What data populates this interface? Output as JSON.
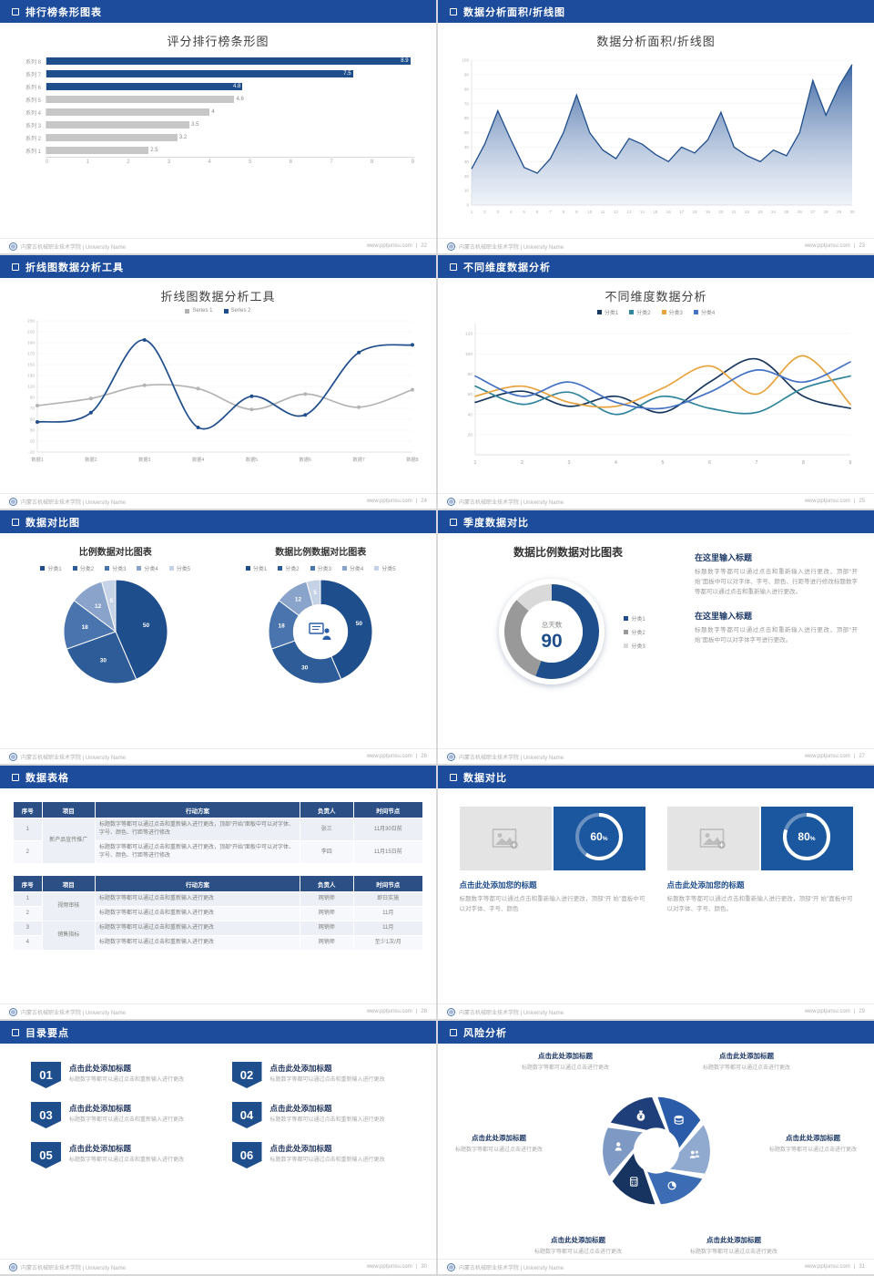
{
  "footer": {
    "org": "内蒙古机械职业技术学院 | University Name",
    "site": "www.pptjunsu.com",
    "divider": "|"
  },
  "slides": [
    {
      "header": "排行榜条形图表",
      "page": "22",
      "title": "评分排行榜条形图"
    },
    {
      "header": "数据分析面积/折线图",
      "page": "23",
      "title": "数据分析面积/折线图"
    },
    {
      "header": "折线图数据分析工具",
      "page": "24",
      "title": "折线图数据分析工具"
    },
    {
      "header": "不同维度数据分析",
      "page": "25",
      "title": "不同维度数据分析"
    },
    {
      "header": "数据对比图",
      "page": "26",
      "title_left": "比例数据对比图表",
      "title_right": "数据比例数据对比图表"
    },
    {
      "header": "季度数据对比",
      "page": "27",
      "title": "数据比例数据对比图表",
      "blocks": [
        {
          "title": "在这里输入标题",
          "body": "标题数字等都可以通过点击和重新输入进行更改，顶部“开始”面板中可以对字体、字号、颜色、行距等进行修改标题数字等都可以通过点击和重新输入进行更改。"
        },
        {
          "title": "在这里输入标题",
          "body": "标题数字等都可以通过点击和重新输入进行更改，顶部“开始”面板中可以对字体字号进行更改。"
        }
      ]
    },
    {
      "header": "数据表格",
      "page": "28"
    },
    {
      "header": "数据对比",
      "page": "29",
      "cards": [
        {
          "title": "点击此处添加您的标题",
          "body": "标题数字等都可以通过点击和重新输入进行更改，顶部“开 始”面板中可以对字体、字号、颜色"
        },
        {
          "title": "点击此处添加您的标题",
          "body": "标题数字等都可以通过点击和重新输入进行更改，顶部“开 始”面板中可以对字体、字号、颜色。"
        }
      ]
    },
    {
      "header": "目录要点",
      "page": "30",
      "items": [
        {
          "num": "01",
          "title": "点击此处添加标题",
          "body": "标题数字等都可以通过点击和重新输入进行更改"
        },
        {
          "num": "02",
          "title": "点击此处添加标题",
          "body": "标题数字等都可以通过点击和重新输入进行更改"
        },
        {
          "num": "03",
          "title": "点击此处添加标题",
          "body": "标题数字等都可以通过点击和重新输入进行更改"
        },
        {
          "num": "04",
          "title": "点击此处添加标题",
          "body": "标题数字等都可以通过点击和重新输入进行更改"
        },
        {
          "num": "05",
          "title": "点击此处添加标题",
          "body": "标题数字等都可以通过点击和重新输入进行更改"
        },
        {
          "num": "06",
          "title": "点击此处添加标题",
          "body": "标题数字等都可以通过点击和重新输入进行更改"
        }
      ]
    },
    {
      "header": "风险分析",
      "page": "31",
      "items": [
        {
          "title": "点击此处添加标题",
          "body": "标题数字等都可以通过点击进行更改"
        },
        {
          "title": "点击此处添加标题",
          "body": "标题数字等都可以通过点击进行更改"
        },
        {
          "title": "点击此处添加标题",
          "body": "标题数字等都可以通过点击进行更改"
        },
        {
          "title": "点击此处添加标题",
          "body": "标题数字等都可以通过点击进行更改"
        },
        {
          "title": "点击此处添加标题",
          "body": "标题数字等都可以通过点击进行更改"
        },
        {
          "title": "点击此处添加标题",
          "body": "标题数字等都可以通过点击进行更改"
        }
      ]
    }
  ],
  "tables": [
    {
      "widths": [
        "7%",
        "13%",
        "50%",
        "13%",
        "17%"
      ],
      "headers": [
        "序号",
        "项目",
        "行动方案",
        "负责人",
        "时间节点"
      ],
      "rows": [
        [
          "1",
          {
            "t": "新产品宣传推广",
            "rs": 2
          },
          {
            "t": "标题数字等都可以通过点击和重新输入进行更改，顶部“开始”面板中可以对字体、字号、颜色、行距等进行修改",
            "cls": "al"
          },
          "张三",
          "11月30日前"
        ],
        [
          "2",
          null,
          {
            "t": "标题数字等都可以通过点击和重新输入进行更改，顶部“开始”面板中可以对字体、字号、颜色、行距等进行修改",
            "cls": "al"
          },
          "李四",
          "11月15日前"
        ]
      ]
    },
    {
      "widths": [
        "7%",
        "13%",
        "50%",
        "13%",
        "17%"
      ],
      "headers": [
        "序号",
        "项目",
        "行动方案",
        "负责人",
        "时间节点"
      ],
      "rows": [
        [
          "1",
          {
            "t": "视频审核",
            "rs": 2
          },
          {
            "t": "标题数字等都可以通过点击和重新输入进行更改",
            "cls": "al"
          },
          "网销师",
          "即日实施"
        ],
        [
          "2",
          null,
          {
            "t": "标题数字等都可以通过点击和重新输入进行更改",
            "cls": "al"
          },
          "网销师",
          "11月"
        ],
        [
          "3",
          {
            "t": "销售指标",
            "rs": 2
          },
          {
            "t": "标题数字等都可以通过点击和重新输入进行更改",
            "cls": "al"
          },
          "网销师",
          "11月"
        ],
        [
          "4",
          null,
          {
            "t": "标题数字等都可以通过点击和重新输入进行更改",
            "cls": "al"
          },
          "网销师",
          "至少1次/月"
        ]
      ]
    }
  ],
  "chart_data": [
    {
      "id": "ranking",
      "type": "bar",
      "title": "评分排行榜条形图",
      "categories": [
        "系列 8",
        "系列 7",
        "系列 6",
        "系列 5",
        "系列 4",
        "系列 3",
        "系列 2",
        "系列 1"
      ],
      "values": [
        8.9,
        7.5,
        4.8,
        4.6,
        4,
        3.5,
        3.2,
        2.5
      ],
      "blue_count": 3,
      "primary": "#1f4e8c",
      "muted": "#c7c7c7",
      "xlim": [
        0,
        9
      ],
      "xticks": [
        0,
        1,
        2,
        3,
        4,
        5,
        6,
        7,
        8,
        9
      ]
    },
    {
      "id": "area",
      "type": "area",
      "title": "数据分析面积/折线图",
      "x": [
        1,
        2,
        3,
        4,
        5,
        6,
        7,
        8,
        9,
        10,
        11,
        12,
        13,
        14,
        15,
        16,
        17,
        18,
        19,
        20,
        21,
        22,
        23,
        24,
        25,
        26,
        27,
        28,
        29,
        30
      ],
      "values": [
        25,
        42,
        65,
        45,
        26,
        22,
        32,
        50,
        76,
        50,
        38,
        32,
        46,
        42,
        35,
        30,
        40,
        36,
        45,
        64,
        40,
        34,
        30,
        38,
        34,
        50,
        86,
        62,
        82,
        97
      ],
      "ylim": [
        0,
        100
      ],
      "yticks": [
        0,
        10,
        20,
        30,
        40,
        50,
        60,
        70,
        80,
        90,
        100
      ],
      "line_color": "#1f4e8c",
      "fill_from": "#35609f",
      "fill_to": "#dfe7f3"
    },
    {
      "id": "lines2",
      "type": "line",
      "title": "折线图数据分析工具",
      "legend_position": "top",
      "markers": true,
      "categories": [
        "数据1",
        "数据2",
        "数据3",
        "数据4",
        "数据5",
        "数据6",
        "数据7",
        "数据8"
      ],
      "series": [
        {
          "name": "Series 1",
          "color": "#b3b3b3",
          "values": [
            75,
            88,
            112,
            106,
            68,
            96,
            72,
            104
          ]
        },
        {
          "name": "Series 2",
          "color": "#1f4e8c",
          "values": [
            45,
            62,
            195,
            35,
            92,
            58,
            172,
            186
          ]
        }
      ],
      "ylim": [
        -10,
        230
      ],
      "yticks": [
        -10,
        10,
        30,
        50,
        70,
        90,
        110,
        130,
        150,
        170,
        190,
        210,
        230
      ]
    },
    {
      "id": "lines4",
      "type": "line",
      "title": "不同维度数据分析",
      "legend_position": "top",
      "markers": false,
      "categories": [
        "1",
        "2",
        "3",
        "4",
        "5",
        "6",
        "7",
        "8",
        "9"
      ],
      "series": [
        {
          "name": "分类1",
          "color": "#17375e",
          "values": [
            52,
            63,
            48,
            58,
            42,
            72,
            95,
            58,
            46
          ]
        },
        {
          "name": "分类2",
          "color": "#31859c",
          "values": [
            68,
            50,
            62,
            40,
            58,
            46,
            42,
            66,
            78
          ]
        },
        {
          "name": "分类3",
          "color": "#e8a33d",
          "values": [
            58,
            68,
            52,
            48,
            66,
            88,
            60,
            98,
            50
          ]
        },
        {
          "name": "分类4",
          "color": "#4472c4",
          "values": [
            78,
            58,
            72,
            52,
            46,
            62,
            84,
            72,
            92
          ]
        }
      ],
      "ylim": [
        0,
        130
      ],
      "yticks": [
        20,
        40,
        60,
        80,
        100,
        120
      ]
    },
    {
      "id": "pie1",
      "type": "pie",
      "title": "比例数据对比图表",
      "labels": [
        "分类1",
        "分类2",
        "分类3",
        "分类4",
        "分类5"
      ],
      "values": [
        50,
        30,
        18,
        12,
        5
      ],
      "colors": [
        "#1f4e8c",
        "#2e5c98",
        "#4a74ad",
        "#8aa3cb",
        "#c6d2e6"
      ]
    },
    {
      "id": "pie2",
      "type": "donut",
      "title": "数据比例数据对比图表",
      "inner": 0.52,
      "center_icon": "presenter-icon",
      "labels": [
        "分类1",
        "分类2",
        "分类3",
        "分类4",
        "分类5"
      ],
      "values": [
        50,
        30,
        18,
        12,
        5
      ],
      "colors": [
        "#1f4e8c",
        "#2e5c98",
        "#4a74ad",
        "#8aa3cb",
        "#c6d2e6"
      ]
    },
    {
      "id": "qdonut",
      "type": "donut-stat",
      "center_label": "总天数",
      "center_value": "90",
      "labels": [
        "分类1",
        "分类2",
        "分类3"
      ],
      "values": [
        50,
        28,
        12
      ],
      "colors": [
        "#1f4e8c",
        "#999999",
        "#d9d9d9"
      ]
    },
    {
      "id": "ring60",
      "type": "ring",
      "percent": 60
    },
    {
      "id": "ring80",
      "type": "ring",
      "percent": 80
    },
    {
      "id": "pinwheel",
      "type": "pinwheel",
      "colors": [
        "#2a5caa",
        "#8fa9cf",
        "#3c6cb4",
        "#16345f",
        "#7e99c4",
        "#1f3f7a"
      ],
      "icons": [
        "coins",
        "people",
        "pie",
        "calculator",
        "person",
        "moneybag"
      ]
    }
  ]
}
